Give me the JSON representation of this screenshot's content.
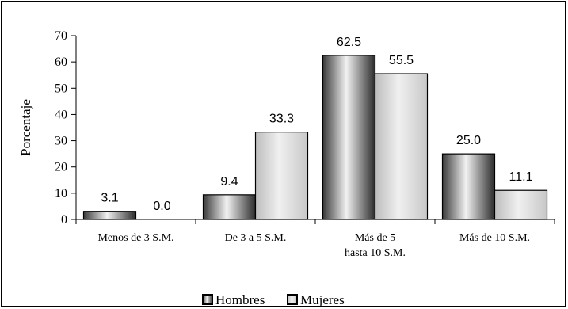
{
  "chart_data": {
    "type": "bar",
    "ylabel": "Porcentaje",
    "ylim": [
      0,
      70
    ],
    "yticks": [
      0,
      10,
      20,
      30,
      40,
      50,
      60,
      70
    ],
    "categories": [
      [
        "Menos de 3 S.M."
      ],
      [
        "De 3 a 5 S.M."
      ],
      [
        "Más de 5",
        "hasta 10 S.M."
      ],
      [
        "Más de 10 S.M."
      ]
    ],
    "series": [
      {
        "name": "Hombres",
        "values": [
          3.1,
          9.4,
          62.5,
          25.0
        ],
        "labels": [
          "3.1",
          "9.4",
          "62.5",
          "25.0"
        ],
        "style": "dark-gradient"
      },
      {
        "name": "Mujeres",
        "values": [
          0.0,
          33.3,
          55.5,
          11.1
        ],
        "labels": [
          "0.0",
          "33.3",
          "55.5",
          "11.1"
        ],
        "style": "light-gradient"
      }
    ],
    "legend_position": "bottom",
    "grid": false
  }
}
